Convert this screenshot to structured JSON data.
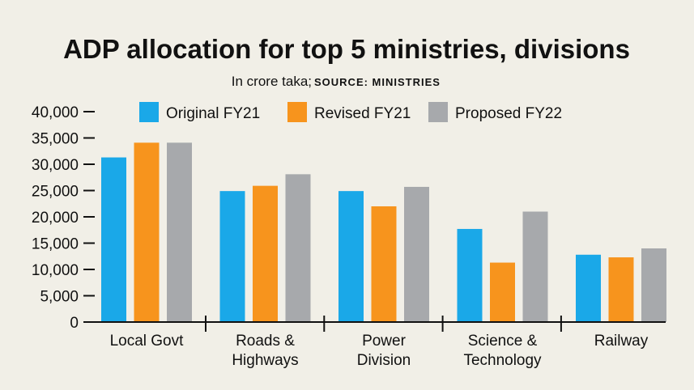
{
  "chart_data": {
    "type": "bar",
    "title": "ADP allocation for top 5 ministries, divisions",
    "subtitle": "In crore taka;",
    "source": "SOURCE: MINISTRIES",
    "xlabel": "",
    "ylabel": "",
    "ylim": [
      0,
      40000
    ],
    "yticks": [
      "0",
      "5,000",
      "10,000",
      "15,000",
      "20,000",
      "25,000",
      "30,000",
      "35,000",
      "40,000"
    ],
    "categories": [
      [
        "Local Govt"
      ],
      [
        "Roads &",
        "Highways"
      ],
      [
        "Power",
        "Division"
      ],
      [
        "Science &",
        "Technology"
      ],
      [
        "Railway"
      ]
    ],
    "series": [
      {
        "name": "Original FY21",
        "color": "#1aa8e8",
        "values": [
          31300,
          24900,
          24900,
          17700,
          12800
        ]
      },
      {
        "name": "Revised FY21",
        "color": "#f7941d",
        "values": [
          34100,
          25900,
          22000,
          11300,
          12300
        ]
      },
      {
        "name": "Proposed FY22",
        "color": "#a7a9ac",
        "values": [
          34100,
          28100,
          25700,
          21000,
          14000
        ]
      }
    ],
    "legend_position": "top"
  }
}
